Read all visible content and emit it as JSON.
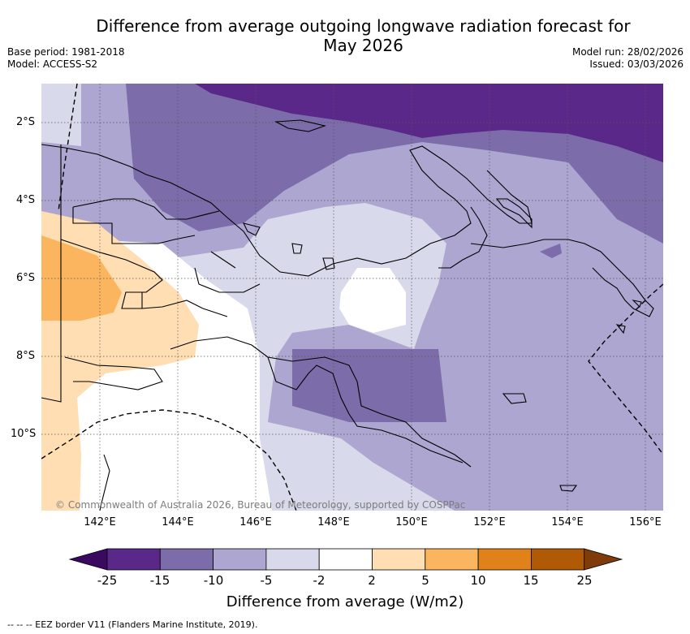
{
  "header": {
    "title_line1": "Difference from average outgoing longwave radiation forecast for",
    "title_line2": "May 2026",
    "base_period": "Base period: 1981-2018",
    "model": "Model: ACCESS-S2",
    "model_run": "Model run: 28/02/2026",
    "issued": "Issued: 03/03/2026"
  },
  "map": {
    "latitude_labels": [
      "2°S",
      "4°S",
      "6°S",
      "8°S",
      "10°S"
    ],
    "longitude_labels": [
      "142°E",
      "144°E",
      "146°E",
      "148°E",
      "150°E",
      "152°E",
      "154°E",
      "156°E"
    ],
    "copyright": "© Commonwealth of Australia 2026, Bureau of Meteorology, supported by COSPPac"
  },
  "colorbar": {
    "ticks": [
      "-25",
      "-15",
      "-10",
      "-5",
      "-2",
      "2",
      "5",
      "10",
      "15",
      "25"
    ],
    "colors": [
      "#5a2889",
      "#7c6daa",
      "#aca6d0",
      "#d8d9ea",
      "#ffffff",
      "#fedeb2",
      "#fbb55e",
      "#e0811a",
      "#b05a06"
    ],
    "under_color": "#3a0a60",
    "over_color": "#7f3c0a",
    "label": "Difference from average (W/m2)"
  },
  "legend": {
    "text": "--  --  -- EEZ border V11 (Flanders Marine Institute, 2019)."
  }
}
